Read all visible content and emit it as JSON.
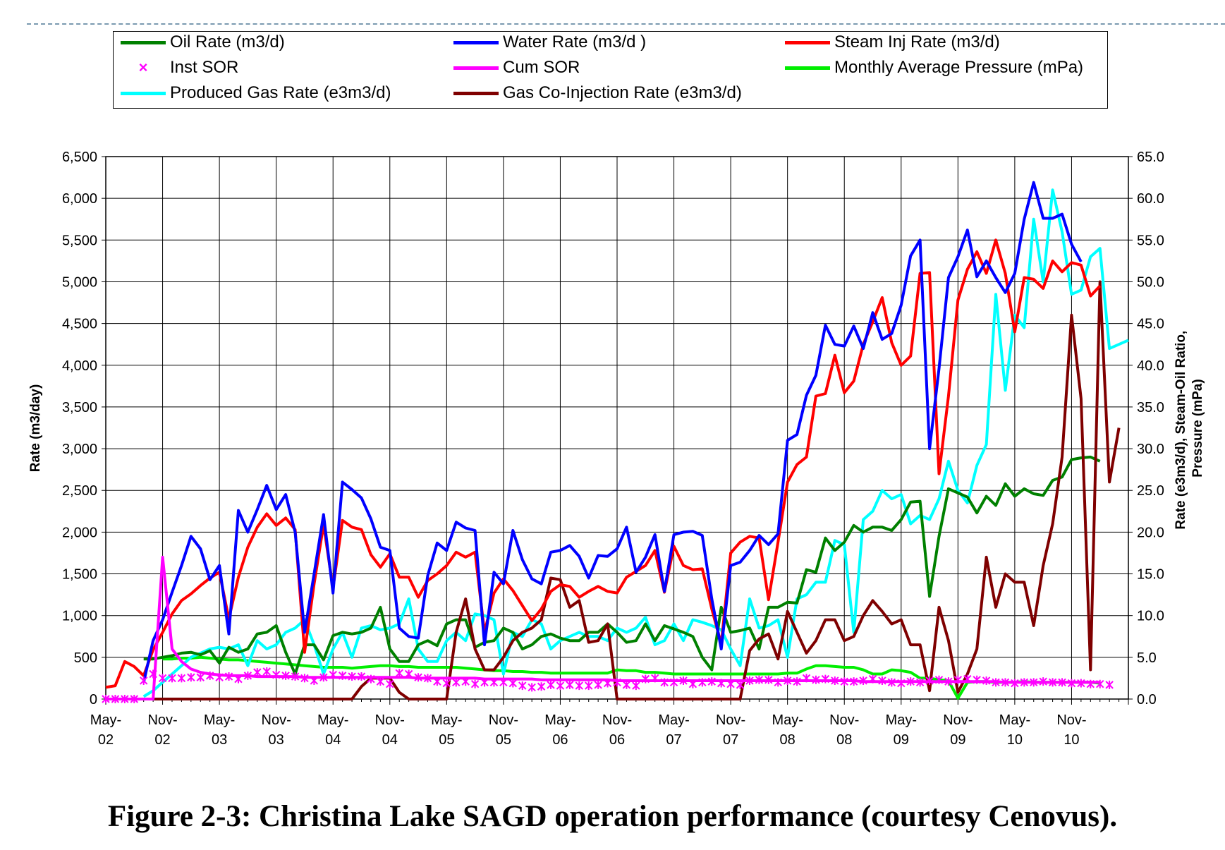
{
  "caption": "Figure 2-3: Christina Lake SAGD operation performance (courtesy Cenovus).",
  "legend": {
    "oil": "Oil Rate (m3/d)",
    "water": "Water Rate (m3/d )",
    "steam": "Steam Inj Rate (m3/d)",
    "inst_sor": "Inst SOR",
    "cum_sor": "Cum SOR",
    "pressure": "Monthly Average Pressure (mPa)",
    "gas": "Produced Gas Rate (e3m3/d)",
    "gas_coinj": "Gas Co-Injection Rate (e3m3/d)"
  },
  "chart_data": {
    "type": "line",
    "title": "",
    "ylabel": "Rate (m3/day)",
    "y2label": "Rate (e3m3/d), Steam-Oil Ratio, Pressure (mPa)",
    "ylim": [
      0,
      6500
    ],
    "y2lim": [
      0,
      65
    ],
    "grid": true,
    "legend_position": "top",
    "x_ticks": [
      [
        "May-",
        "02"
      ],
      [
        "Nov-",
        "02"
      ],
      [
        "May-",
        "03"
      ],
      [
        "Nov-",
        "03"
      ],
      [
        "May-",
        "04"
      ],
      [
        "Nov-",
        "04"
      ],
      [
        "May-",
        "05"
      ],
      [
        "Nov-",
        "05"
      ],
      [
        "May-",
        "06"
      ],
      [
        "Nov-",
        "06"
      ],
      [
        "May-",
        "07"
      ],
      [
        "Nov-",
        "07"
      ],
      [
        "May-",
        "08"
      ],
      [
        "Nov-",
        "08"
      ],
      [
        "May-",
        "09"
      ],
      [
        "Nov-",
        "09"
      ],
      [
        "May-",
        "10"
      ],
      [
        "Nov-",
        "10"
      ]
    ],
    "y_ticks": [
      "0",
      "500",
      "1,000",
      "1,500",
      "2,000",
      "2,500",
      "3,000",
      "3,500",
      "4,000",
      "4,500",
      "5,000",
      "5,500",
      "6,000",
      "6,500"
    ],
    "y2_ticks": [
      "0.0",
      "5.0",
      "10.0",
      "15.0",
      "20.0",
      "25.0",
      "30.0",
      "35.0",
      "40.0",
      "45.0",
      "50.0",
      "55.0",
      "60.0",
      "65.0"
    ],
    "x_unit": "months since May-02",
    "series": [
      {
        "name": "Oil Rate (m3/d)",
        "axis": "left",
        "color": "#008000",
        "x_start": 4,
        "values": [
          480,
          480,
          500,
          520,
          550,
          560,
          530,
          580,
          430,
          620,
          560,
          600,
          780,
          800,
          880,
          560,
          300,
          650,
          650,
          470,
          760,
          800,
          780,
          800,
          850,
          1100,
          600,
          450,
          450,
          650,
          700,
          640,
          900,
          950,
          950,
          620,
          680,
          700,
          850,
          800,
          600,
          650,
          750,
          780,
          730,
          700,
          700,
          800,
          800,
          900,
          800,
          680,
          700,
          900,
          700,
          880,
          840,
          800,
          750,
          500,
          350,
          1100,
          800,
          820,
          850,
          600,
          1100,
          1100,
          1160,
          1150,
          1550,
          1520,
          1930,
          1780,
          1880,
          2080,
          2000,
          2060,
          2060,
          2020,
          2150,
          2360,
          2370,
          1230,
          1950,
          2520,
          2470,
          2420,
          2230,
          2430,
          2320,
          2580,
          2430,
          2520,
          2460,
          2440,
          2620,
          2660,
          2870,
          2890,
          2900,
          2850
        ]
      },
      {
        "name": "Water Rate (m3/d )",
        "axis": "left",
        "color": "#0000ff",
        "x_start": 4,
        "values": [
          200,
          700,
          950,
          1280,
          1600,
          1950,
          1800,
          1430,
          1600,
          780,
          2260,
          2000,
          2270,
          2560,
          2270,
          2450,
          2000,
          800,
          1500,
          2210,
          1270,
          2600,
          2510,
          2410,
          2160,
          1820,
          1780,
          850,
          750,
          730,
          1480,
          1870,
          1780,
          2120,
          2050,
          2020,
          650,
          1520,
          1380,
          2020,
          1670,
          1440,
          1380,
          1760,
          1780,
          1840,
          1710,
          1450,
          1720,
          1710,
          1800,
          2060,
          1520,
          1700,
          1970,
          1290,
          1970,
          2000,
          2010,
          1960,
          1200,
          600,
          1600,
          1640,
          1780,
          1960,
          1850,
          1980,
          3100,
          3170,
          3640,
          3880,
          4480,
          4250,
          4230,
          4470,
          4200,
          4630,
          4310,
          4380,
          4720,
          5310,
          5500,
          3000,
          3960,
          5050,
          5300,
          5620,
          5060,
          5250,
          5050,
          4870,
          5100,
          5750,
          6190,
          5760,
          5760,
          5810,
          5450,
          5240
        ]
      },
      {
        "name": "Steam Inj Rate (m3/d)",
        "axis": "left",
        "color": "#ff0000",
        "x_start": 0,
        "values": [
          140,
          160,
          450,
          390,
          280,
          590,
          800,
          1020,
          1180,
          1260,
          1360,
          1450,
          1520,
          960,
          1460,
          1820,
          2060,
          2220,
          2080,
          2170,
          2030,
          560,
          1380,
          2090,
          1330,
          2140,
          2060,
          2030,
          1730,
          1580,
          1740,
          1460,
          1460,
          1220,
          1420,
          1500,
          1600,
          1760,
          1700,
          1760,
          800,
          1270,
          1440,
          1300,
          1120,
          940,
          1080,
          1290,
          1370,
          1350,
          1220,
          1290,
          1350,
          1290,
          1270,
          1460,
          1530,
          1600,
          1780,
          1280,
          1830,
          1600,
          1550,
          1560,
          1080,
          660,
          1750,
          1880,
          1950,
          1930,
          1190,
          1880,
          2600,
          2810,
          2900,
          3630,
          3660,
          4120,
          3670,
          3810,
          4250,
          4520,
          4810,
          4270,
          4000,
          4110,
          5100,
          5110,
          2700,
          3630,
          4780,
          5150,
          5360,
          5100,
          5500,
          5100,
          4400,
          5050,
          5030,
          4920,
          5250,
          5120,
          5230,
          5200,
          4830,
          4950
        ]
      },
      {
        "name": "Inst SOR",
        "axis": "right",
        "color": "#ff00ff",
        "marker": "x",
        "x_start": 0,
        "values": [
          0,
          0,
          0,
          0,
          2.2,
          3.0,
          2.5,
          2.5,
          2.5,
          2.6,
          2.6,
          2.8,
          2.6,
          2.7,
          2.4,
          2.8,
          3.2,
          3.3,
          2.9,
          2.8,
          2.7,
          2.5,
          2.2,
          2.6,
          2.9,
          2.8,
          2.7,
          2.7,
          2.4,
          2.1,
          1.8,
          3.1,
          3.0,
          2.6,
          2.5,
          2.1,
          1.9,
          2.0,
          2.1,
          1.8,
          2.0,
          2.0,
          2.0,
          1.9,
          1.6,
          1.4,
          1.5,
          1.7,
          1.6,
          1.7,
          1.6,
          1.6,
          1.7,
          1.9,
          2.0,
          1.7,
          1.6,
          2.4,
          2.5,
          2.0,
          2.0,
          2.2,
          1.8,
          2.0,
          2.1,
          1.9,
          1.8,
          1.7,
          2.2,
          2.3,
          2.3,
          2.0,
          2.2,
          2.1,
          2.5,
          2.3,
          2.4,
          2.2,
          2.1,
          2.1,
          2.2,
          2.4,
          2.2,
          2.0,
          1.9,
          2.1,
          2.0,
          2.2,
          2.3,
          2.1,
          2.3,
          2.4,
          2.3,
          2.2,
          2.0,
          2.0,
          1.9,
          2.0,
          2.0,
          2.1,
          2.0,
          2.0,
          1.9,
          1.9,
          1.8,
          1.8,
          1.7
        ]
      },
      {
        "name": "Cum SOR",
        "axis": "right",
        "color": "#ff00ff",
        "x_start": 0,
        "values": [
          0,
          0,
          0,
          0,
          0,
          0,
          17.0,
          6.0,
          4.5,
          3.6,
          3.2,
          3.0,
          2.9,
          2.8,
          2.8,
          2.8,
          2.7,
          2.7,
          2.7,
          2.7,
          2.7,
          2.6,
          2.6,
          2.6,
          2.6,
          2.6,
          2.6,
          2.6,
          2.6,
          2.6,
          2.6,
          2.6,
          2.6,
          2.5,
          2.5,
          2.5,
          2.5,
          2.5,
          2.5,
          2.5,
          2.4,
          2.4,
          2.4,
          2.4,
          2.4,
          2.4,
          2.3,
          2.3,
          2.3,
          2.3,
          2.3,
          2.3,
          2.3,
          2.3,
          2.2,
          2.2,
          2.2,
          2.2,
          2.2,
          2.2,
          2.2,
          2.2,
          2.2,
          2.2,
          2.2,
          2.2,
          2.2,
          2.2,
          2.2,
          2.2,
          2.2,
          2.2,
          2.2,
          2.2,
          2.2,
          2.2,
          2.2,
          2.2,
          2.2,
          2.2,
          2.1,
          2.1,
          2.1,
          2.1,
          2.1,
          2.1,
          2.1,
          2.1,
          2.1,
          2.1,
          2.1,
          2.1,
          2.1,
          2.1,
          2.1,
          2.0,
          2.0,
          2.0,
          2.0,
          2.0,
          2.0,
          2.0,
          2.0,
          2.0,
          2.0,
          2.0
        ]
      },
      {
        "name": "Monthly Average Pressure (mPa)",
        "axis": "right",
        "color": "#00ee00",
        "x_start": 6,
        "values": [
          4.8,
          4.8,
          4.9,
          4.9,
          5.0,
          4.9,
          4.8,
          4.7,
          4.7,
          4.6,
          4.5,
          4.4,
          4.3,
          4.2,
          4.1,
          4.0,
          3.9,
          3.8,
          3.8,
          3.8,
          3.7,
          3.8,
          3.9,
          4.0,
          4.0,
          3.9,
          3.9,
          3.8,
          3.8,
          3.8,
          3.8,
          3.8,
          3.7,
          3.6,
          3.5,
          3.4,
          3.4,
          3.3,
          3.3,
          3.2,
          3.2,
          3.1,
          3.1,
          3.1,
          3.1,
          3.1,
          3.1,
          3.1,
          3.5,
          3.4,
          3.4,
          3.2,
          3.2,
          3.1,
          3.0,
          3.0,
          3.0,
          3.0,
          3.0,
          3.0,
          3.0,
          3.0,
          3.0,
          3.0,
          3.0,
          3.0,
          3.1,
          3.1,
          3.6,
          4.0,
          4.0,
          3.9,
          3.8,
          3.8,
          3.5,
          3.0,
          3.0,
          3.5,
          3.4,
          3.2,
          2.5,
          2.5,
          2.3,
          2.2,
          0.1,
          2.0,
          2.1,
          2.1,
          2.0,
          2.0,
          2.0,
          2.1,
          2.0,
          2.0,
          2.0,
          2.0,
          2.0,
          2.0,
          2.0,
          1.9
        ]
      },
      {
        "name": "Produced Gas Rate (e3m3/d)",
        "axis": "right",
        "color": "#00ffff",
        "x_start": 4,
        "values": [
          0.3,
          1.0,
          2.0,
          3.0,
          4.0,
          5.0,
          5.5,
          6.0,
          6.2,
          6.0,
          6.5,
          4.0,
          7.0,
          6.0,
          6.5,
          8.0,
          8.5,
          9.5,
          6.5,
          3.0,
          6.0,
          8.0,
          5.0,
          8.5,
          8.8,
          8.3,
          8.5,
          9.0,
          12.0,
          6.0,
          4.5,
          4.5,
          7.0,
          8.0,
          7.0,
          10.2,
          10.0,
          9.5,
          3.0,
          8.0,
          7.5,
          9.5,
          9.0,
          6.0,
          7.0,
          7.5,
          8.0,
          7.5,
          7.5,
          7.0,
          8.5,
          8.0,
          8.5,
          9.8,
          6.5,
          7.0,
          9.0,
          7.0,
          9.5,
          9.2,
          8.8,
          8.3,
          6.0,
          4.0,
          12.0,
          8.5,
          8.8,
          9.5,
          5.0,
          12.0,
          12.5,
          14.0,
          14.0,
          19.0,
          18.5,
          8.0,
          21.5,
          22.5,
          25.0,
          24.0,
          24.5,
          21.0,
          22.0,
          21.5,
          24.0,
          28.5,
          25.0,
          23.5,
          28.0,
          30.5,
          48.5,
          37.0,
          46.0,
          44.5,
          57.5,
          50.0,
          61.0,
          56.0,
          48.5,
          49.0,
          53.0,
          54.0,
          42.0,
          42.5,
          43.0
        ]
      },
      {
        "name": "Gas Co-Injection Rate (e3m3/d)",
        "axis": "right",
        "color": "#7f0000",
        "x_start": 0,
        "values": [
          0,
          0,
          0,
          0,
          0,
          0,
          0,
          0,
          0,
          0,
          0,
          0,
          0,
          0,
          0,
          0,
          0,
          0,
          0,
          0,
          0,
          0,
          0,
          0,
          0,
          0,
          0,
          1.5,
          2.5,
          2.5,
          2.5,
          0.8,
          0,
          0,
          0,
          0,
          0,
          8.0,
          12.0,
          6.0,
          3.5,
          3.5,
          5.0,
          7.0,
          8.0,
          8.5,
          9.5,
          14.5,
          14.3,
          11.0,
          11.8,
          6.8,
          7.0,
          9.0,
          0,
          0,
          0,
          0,
          0,
          0,
          0,
          0,
          0,
          0,
          0,
          0,
          0,
          0,
          5.8,
          7.2,
          7.8,
          4.8,
          10.5,
          8.0,
          5.5,
          7.0,
          9.5,
          9.5,
          7.0,
          7.5,
          10.0,
          11.8,
          10.5,
          9.0,
          9.5,
          6.5,
          6.5,
          1.0,
          11.0,
          7.0,
          0.8,
          3.0,
          6.0,
          17.0,
          11.0,
          15.0,
          14.0,
          14.0,
          8.8,
          16.0,
          21.0,
          29.0,
          46.0,
          36.0,
          3.5,
          50.0,
          26.0,
          32.5
        ]
      }
    ]
  }
}
